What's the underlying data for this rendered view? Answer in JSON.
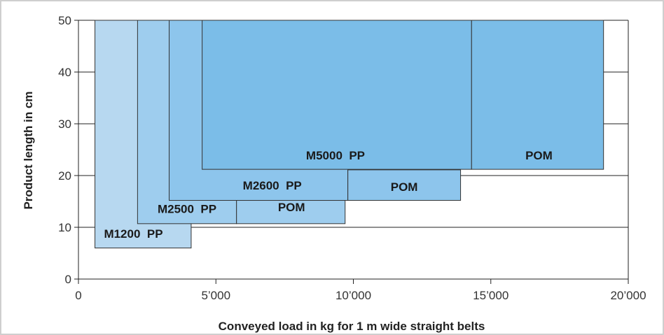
{
  "chart_data": {
    "type": "area",
    "xlabel": "Conveyed load in kg for 1 m wide straight belts",
    "ylabel": "Product length in cm",
    "xlim": [
      0,
      20000
    ],
    "ylim": [
      0,
      50
    ],
    "x_ticks": [
      {
        "value": 0,
        "label": "0"
      },
      {
        "value": 5000,
        "label": "5’000"
      },
      {
        "value": 10000,
        "label": "10’000"
      },
      {
        "value": 15000,
        "label": "15’000"
      },
      {
        "value": 20000,
        "label": "20’000"
      }
    ],
    "y_ticks": [
      {
        "value": 0,
        "label": "0"
      },
      {
        "value": 10,
        "label": "10"
      },
      {
        "value": 20,
        "label": "20"
      },
      {
        "value": 30,
        "label": "30"
      },
      {
        "value": 40,
        "label": "40"
      },
      {
        "value": 50,
        "label": "50"
      }
    ],
    "grid": "horizontal",
    "regions": [
      {
        "x0": 600,
        "x1": 4100,
        "y0": 6,
        "y1": 50,
        "color": "#b7d8f0",
        "label": "M1200  PP",
        "label_x": 2000,
        "label_y": 8
      },
      {
        "x0": 2150,
        "x1": 5750,
        "y0": 10.7,
        "y1": 50,
        "color": "#9ecdee",
        "label": "M2500  PP",
        "label_x": 3950,
        "label_y": 12.8
      },
      {
        "x0": 5750,
        "x1": 9700,
        "y0": 10.7,
        "y1": 15.2,
        "color": "#9ecdee",
        "label": "POM",
        "label_x": 7750,
        "label_y": 13.1
      },
      {
        "x0": 3300,
        "x1": 9800,
        "y0": 15.2,
        "y1": 50,
        "color": "#8dc5ec",
        "label": "M2600  PP",
        "label_x": 7050,
        "label_y": 17.3
      },
      {
        "x0": 9800,
        "x1": 13900,
        "y0": 15.2,
        "y1": 21.1,
        "color": "#8dc5ec",
        "label": "POM",
        "label_x": 11850,
        "label_y": 17.0
      },
      {
        "x0": 4500,
        "x1": 14300,
        "y0": 21.2,
        "y1": 50,
        "color": "#7bbde8",
        "label": "M5000  PP",
        "label_x": 9350,
        "label_y": 23.1
      },
      {
        "x0": 14300,
        "x1": 19100,
        "y0": 21.2,
        "y1": 50,
        "color": "#7bbde8",
        "label": "POM",
        "label_x": 16750,
        "label_y": 23.1
      }
    ]
  }
}
